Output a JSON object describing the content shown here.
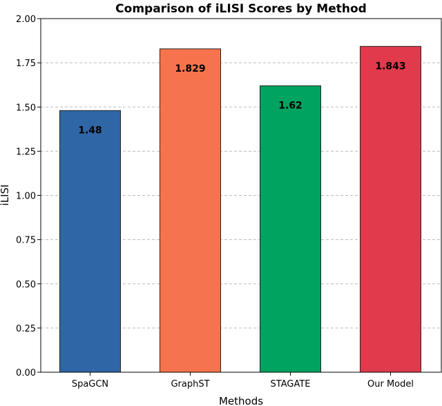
{
  "chart_data": {
    "type": "bar",
    "title": "Comparison of iLISI Scores by Method",
    "xlabel": "Methods",
    "ylabel": "iLISI",
    "categories": [
      "SpaGCN",
      "GraphST",
      "STAGATE",
      "Our Model"
    ],
    "values": [
      1.48,
      1.829,
      1.62,
      1.843
    ],
    "value_labels": [
      "1.48",
      "1.829",
      "1.62",
      "1.843"
    ],
    "colors": [
      "#2f67a6",
      "#f6744d",
      "#00a35f",
      "#e03a4c"
    ],
    "ylim": [
      0,
      2.0
    ],
    "yticks": [
      "0.00",
      "0.25",
      "0.50",
      "0.75",
      "1.00",
      "1.25",
      "1.50",
      "1.75",
      "2.00"
    ],
    "grid": "y-dashed",
    "legend": null
  }
}
